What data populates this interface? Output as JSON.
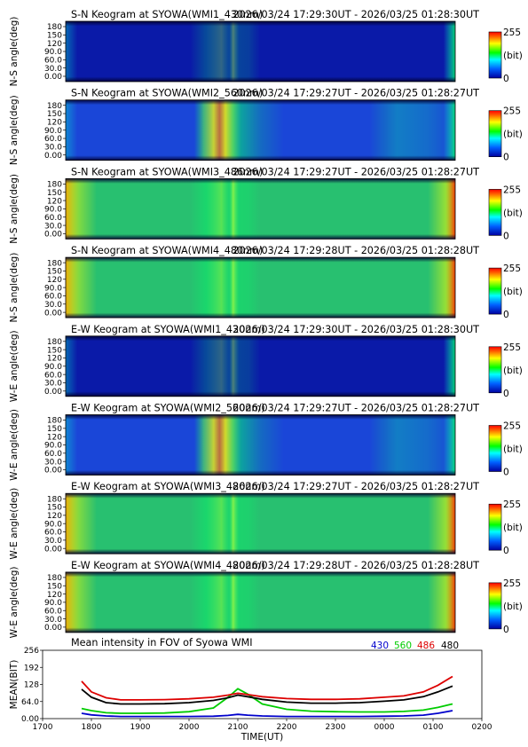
{
  "panels": [
    {
      "title": "S-N Keogram at SYOWA(WMI1_430nm)",
      "timerange": "2026/03/24 17:29:30UT - 2026/03/25 01:28:30UT",
      "ylabel": "N-S angle(deg)",
      "yticks": [
        "180",
        "150",
        "120",
        "90.0",
        "60.0",
        "30.0",
        "0.00"
      ],
      "intensity": "low"
    },
    {
      "title": "S-N Keogram at SYOWA(WMI2_560nm)",
      "timerange": "2026/03/24 17:29:27UT - 2026/03/25 01:28:27UT",
      "ylabel": "N-S angle(deg)",
      "yticks": [
        "180",
        "150",
        "120",
        "90.0",
        "60.0",
        "30.0",
        "0.00"
      ],
      "intensity": "aurora"
    },
    {
      "title": "S-N Keogram at SYOWA(WMI3_486nm)",
      "timerange": "2026/03/24 17:29:27UT - 2026/03/25 01:28:27UT",
      "ylabel": "N-S angle(deg)",
      "yticks": [
        "180",
        "150",
        "120",
        "90.0",
        "60.0",
        "30.0",
        "0.00"
      ],
      "intensity": "high"
    },
    {
      "title": "S-N Keogram at SYOWA(WMI4_480nm)",
      "timerange": "2026/03/24 17:29:28UT - 2026/03/25 01:28:28UT",
      "ylabel": "N-S angle(deg)",
      "yticks": [
        "180",
        "150",
        "120",
        "90.0",
        "60.0",
        "30.0",
        "0.00"
      ],
      "intensity": "high"
    },
    {
      "title": "E-W Keogram at SYOWA(WMI1_430nm)",
      "timerange": "2026/03/24 17:29:30UT - 2026/03/25 01:28:30UT",
      "ylabel": "W-E angle(deg)",
      "yticks": [
        "180",
        "150",
        "120",
        "90.0",
        "60.0",
        "30.0",
        "0.00"
      ],
      "intensity": "low"
    },
    {
      "title": "E-W Keogram at SYOWA(WMI2_560nm)",
      "timerange": "2026/03/24 17:29:27UT - 2026/03/25 01:28:27UT",
      "ylabel": "W-E angle(deg)",
      "yticks": [
        "180",
        "150",
        "120",
        "90.0",
        "60.0",
        "30.0",
        "0.00"
      ],
      "intensity": "aurora"
    },
    {
      "title": "E-W Keogram at SYOWA(WMI3_486nm)",
      "timerange": "2026/03/24 17:29:27UT - 2026/03/25 01:28:27UT",
      "ylabel": "W-E angle(deg)",
      "yticks": [
        "180",
        "150",
        "120",
        "90.0",
        "60.0",
        "30.0",
        "0.00"
      ],
      "intensity": "high"
    },
    {
      "title": "E-W Keogram at SYOWA(WMI4_480nm)",
      "timerange": "2026/03/24 17:29:28UT - 2026/03/25 01:28:28UT",
      "ylabel": "W-E angle(deg)",
      "yticks": [
        "180",
        "150",
        "120",
        "90.0",
        "60.0",
        "30.0",
        "0.00"
      ],
      "intensity": "high"
    }
  ],
  "colorbar": {
    "max_label": "255",
    "unit_label": "(bit)",
    "min_label": "0"
  },
  "chart_data": {
    "type": "line",
    "title": "Mean intensity in FOV of Syowa WMI",
    "xlabel": "TIME(UT)",
    "ylabel": "MEAN(BIT)",
    "x_ticks": [
      "1700",
      "1800",
      "1900",
      "2000",
      "2100",
      "2200",
      "2300",
      "0000",
      "0100",
      "0200"
    ],
    "y_ticks": [
      "256",
      "192",
      "128",
      "64.0",
      "0.00"
    ],
    "ylim": [
      0,
      256
    ],
    "x_hours": [
      17.8,
      18.0,
      18.3,
      18.6,
      19.0,
      19.5,
      20.0,
      20.5,
      20.8,
      21.0,
      21.2,
      21.5,
      22.0,
      22.5,
      23.0,
      23.5,
      24.0,
      24.4,
      24.8,
      25.1,
      25.4
    ],
    "series": [
      {
        "name": "430",
        "color": "#0000cc",
        "values": [
          20,
          14,
          10,
          8,
          8,
          8,
          8,
          9,
          12,
          16,
          13,
          10,
          8,
          8,
          8,
          8,
          9,
          10,
          13,
          20,
          30
        ]
      },
      {
        "name": "560",
        "color": "#00cc00",
        "values": [
          38,
          30,
          22,
          20,
          20,
          21,
          26,
          40,
          80,
          112,
          92,
          55,
          35,
          28,
          26,
          25,
          25,
          27,
          32,
          42,
          55
        ]
      },
      {
        "name": "486",
        "color": "#dd0000",
        "values": [
          140,
          100,
          78,
          70,
          70,
          71,
          74,
          80,
          88,
          95,
          90,
          82,
          75,
          72,
          72,
          74,
          80,
          85,
          100,
          125,
          158
        ]
      },
      {
        "name": "480",
        "color": "#000000",
        "values": [
          110,
          80,
          60,
          55,
          55,
          56,
          60,
          68,
          78,
          88,
          82,
          72,
          62,
          58,
          58,
          60,
          65,
          70,
          82,
          100,
          122
        ]
      }
    ]
  }
}
